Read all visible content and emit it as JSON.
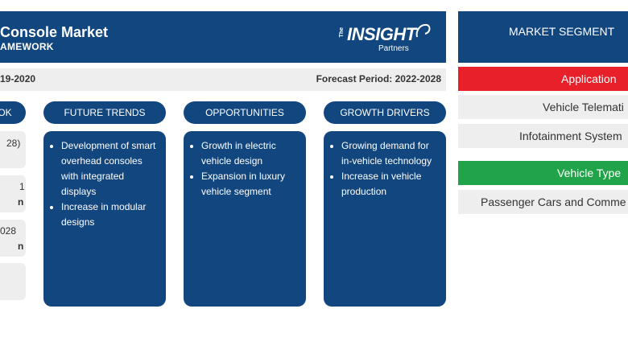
{
  "header": {
    "title": "Console Market",
    "subtitle": "AMEWORK",
    "logo": {
      "the": "The",
      "main": "INSIGHT",
      "partners": "Partners"
    }
  },
  "periods": {
    "historical": "19-2020",
    "forecast": "Forecast Period: 2022-2028"
  },
  "columns": [
    {
      "title": "OK",
      "items": []
    },
    {
      "title": "FUTURE TRENDS",
      "items": [
        "Development of smart overhead consoles with integrated displays",
        "Increase in modular designs"
      ]
    },
    {
      "title": "OPPORTUNITIES",
      "items": [
        "Growth in electric vehicle design",
        "Expansion in luxury vehicle segment"
      ]
    },
    {
      "title": "GROWTH DRIVERS",
      "items": [
        "Growing demand for in-vehicle technology",
        "Increase in vehicle production"
      ]
    }
  ],
  "outlook_boxes": [
    {
      "line1": "28)",
      "line2": ""
    },
    {
      "line1": "1",
      "line2": "n"
    },
    {
      "line1": "028",
      "line2": "n"
    },
    {
      "line1": "",
      "line2": ""
    }
  ],
  "segments": {
    "title": "MARKET SEGMENT",
    "groups": [
      {
        "label": "Application",
        "color": "#e8202a",
        "items": [
          "Vehicle Telemati",
          "Infotainment System"
        ]
      },
      {
        "label": "Vehicle Type",
        "color": "#21a349",
        "items": [
          "Passenger Cars and Comme"
        ]
      }
    ]
  }
}
